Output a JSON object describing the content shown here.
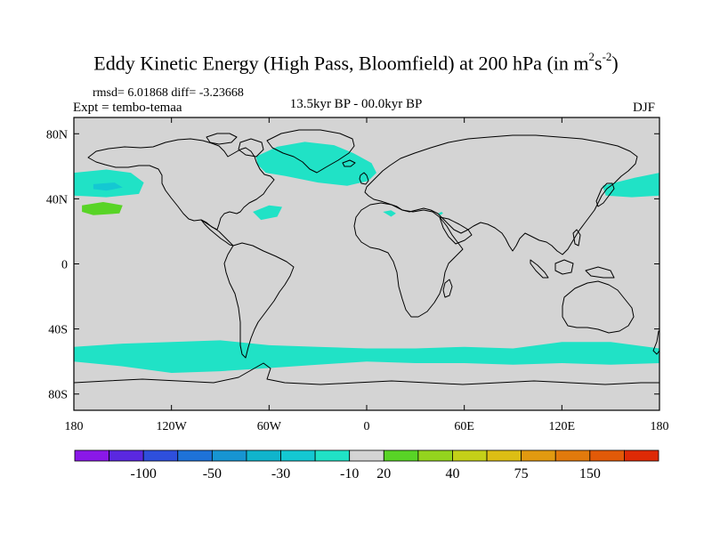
{
  "chart_data": {
    "type": "heatmap",
    "title_main": "Eddy Kinetic Energy (High Pass, Bloomfield) at 200 hPa (in m",
    "title_unit_m_exp": "2",
    "title_unit_s": "s",
    "title_unit_s_exp": "-2",
    "title_close": ")",
    "stats_text": "rmsd= 6.01868 diff= -3.23668",
    "experiment_text": "Expt = tembo-temaa",
    "period_text": "13.5kyr BP - 00.0kyr BP",
    "season_text": "DJF",
    "lon_range": [
      -180,
      180
    ],
    "lat_range": [
      -90,
      90
    ],
    "xticks": [
      {
        "lon": -180,
        "label": "180"
      },
      {
        "lon": -120,
        "label": "120W"
      },
      {
        "lon": -60,
        "label": "60W"
      },
      {
        "lon": 0,
        "label": "0"
      },
      {
        "lon": 60,
        "label": "60E"
      },
      {
        "lon": 120,
        "label": "120E"
      },
      {
        "lon": 180,
        "label": "180"
      }
    ],
    "yticks": [
      {
        "lat": 80,
        "label": "80N"
      },
      {
        "lat": 40,
        "label": "40N"
      },
      {
        "lat": 0,
        "label": "0"
      },
      {
        "lat": -40,
        "label": "40S"
      },
      {
        "lat": -80,
        "label": "80S"
      }
    ],
    "background_color": "#d4d4d4",
    "colorbar": {
      "colors": [
        "#8a18e8",
        "#5a28e0",
        "#2e4fdc",
        "#1e72d8",
        "#1795d2",
        "#10b4cc",
        "#14c8d2",
        "#20e2c6",
        "#d4d4d4",
        "#58d426",
        "#94d41e",
        "#c4d018",
        "#dcbe14",
        "#e29a10",
        "#e27a0c",
        "#e25a08",
        "#de2a06"
      ],
      "labels": [
        {
          "after_box": 2,
          "text": "-100"
        },
        {
          "after_box": 4,
          "text": "-50"
        },
        {
          "after_box": 6,
          "text": "-30"
        },
        {
          "after_box": 8,
          "text": "-10"
        },
        {
          "after_box": 9,
          "text": "20"
        },
        {
          "after_box": 11,
          "text": "40"
        },
        {
          "after_box": 13,
          "text": "75"
        },
        {
          "after_box": 15,
          "text": "150"
        }
      ]
    },
    "anomaly_regions": [
      {
        "name": "southern-ocean-belt",
        "value_bin": "-10",
        "color": "#20e2c6",
        "outline": [
          [
            -180,
            -51
          ],
          [
            -150,
            -49
          ],
          [
            -120,
            -48
          ],
          [
            -90,
            -47
          ],
          [
            -60,
            -50
          ],
          [
            -30,
            -51
          ],
          [
            0,
            -52
          ],
          [
            30,
            -52
          ],
          [
            60,
            -51
          ],
          [
            90,
            -52
          ],
          [
            120,
            -48
          ],
          [
            150,
            -48
          ],
          [
            180,
            -52
          ],
          [
            180,
            -61
          ],
          [
            150,
            -62
          ],
          [
            120,
            -61
          ],
          [
            90,
            -62
          ],
          [
            60,
            -61
          ],
          [
            30,
            -61
          ],
          [
            0,
            -60
          ],
          [
            -30,
            -62
          ],
          [
            -60,
            -64
          ],
          [
            -90,
            -66
          ],
          [
            -120,
            -67
          ],
          [
            -150,
            -63
          ],
          [
            -180,
            -60
          ]
        ]
      },
      {
        "name": "north-atlantic",
        "value_bin": "-10",
        "color": "#20e2c6",
        "outline": [
          [
            -68,
            66
          ],
          [
            -55,
            72
          ],
          [
            -38,
            75
          ],
          [
            -20,
            73
          ],
          [
            -8,
            68
          ],
          [
            3,
            62
          ],
          [
            6,
            56
          ],
          [
            1,
            51
          ],
          [
            -12,
            48
          ],
          [
            -30,
            50
          ],
          [
            -50,
            54
          ],
          [
            -62,
            56
          ],
          [
            -67,
            61
          ]
        ]
      },
      {
        "name": "north-pacific-east",
        "value_bin": "-10",
        "color": "#20e2c6",
        "outline": [
          [
            -180,
            56
          ],
          [
            -160,
            58
          ],
          [
            -145,
            56
          ],
          [
            -137,
            50
          ],
          [
            -140,
            43
          ],
          [
            -160,
            41
          ],
          [
            -180,
            42
          ]
        ]
      },
      {
        "name": "north-pacific-west",
        "value_bin": "-10",
        "color": "#20e2c6",
        "outline": [
          [
            145,
            48
          ],
          [
            165,
            53
          ],
          [
            180,
            56
          ],
          [
            180,
            42
          ],
          [
            163,
            41
          ],
          [
            147,
            42
          ]
        ]
      },
      {
        "name": "west-atlantic-subtropics",
        "value_bin": "-10",
        "color": "#20e2c6",
        "outline": [
          [
            -70,
            32
          ],
          [
            -60,
            36
          ],
          [
            -52,
            35
          ],
          [
            -55,
            29
          ],
          [
            -65,
            27
          ]
        ]
      },
      {
        "name": "mediterranean",
        "value_bin": "-10",
        "color": "#20e2c6",
        "outline": [
          [
            10,
            32
          ],
          [
            15,
            33
          ],
          [
            18,
            31
          ],
          [
            15,
            29
          ]
        ]
      },
      {
        "name": "middle-east",
        "value_bin": "-10",
        "color": "#20e2c6",
        "outline": [
          [
            44,
            31
          ],
          [
            46,
            32
          ],
          [
            47,
            31
          ],
          [
            45,
            30
          ]
        ]
      },
      {
        "name": "pacific-deeper",
        "value_bin": "-30",
        "color": "#14c8d2",
        "outline": [
          [
            -168,
            49
          ],
          [
            -155,
            50
          ],
          [
            -150,
            47
          ],
          [
            -160,
            45
          ],
          [
            -168,
            46
          ]
        ]
      },
      {
        "name": "pacific-positive",
        "value_bin": "20",
        "color": "#58d426",
        "outline": [
          [
            -175,
            36
          ],
          [
            -162,
            38
          ],
          [
            -150,
            36
          ],
          [
            -152,
            31
          ],
          [
            -168,
            30
          ],
          [
            -175,
            32
          ]
        ]
      }
    ]
  }
}
